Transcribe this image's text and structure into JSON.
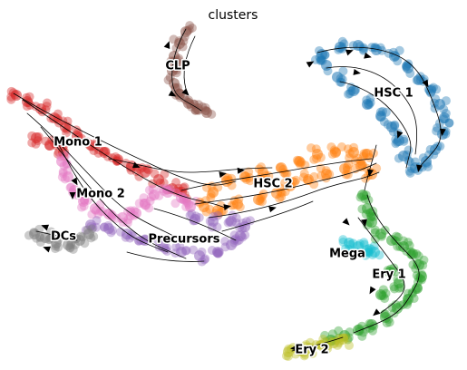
{
  "chart_data": {
    "type": "scatter",
    "title": "clusters",
    "xlabel": "",
    "ylabel": "",
    "grid": false,
    "axes_visible": false,
    "legend": "on data",
    "overlay": "velocity streamlines",
    "series": [
      {
        "name": "HSC 1",
        "color": "#1f77b4",
        "points": [
          [
            355,
            60
          ],
          [
            375,
            52
          ],
          [
            395,
            50
          ],
          [
            415,
            55
          ],
          [
            435,
            62
          ],
          [
            450,
            75
          ],
          [
            462,
            88
          ],
          [
            475,
            100
          ],
          [
            485,
            115
          ],
          [
            490,
            130
          ],
          [
            488,
            148
          ],
          [
            480,
            165
          ],
          [
            470,
            178
          ],
          [
            458,
            185
          ],
          [
            445,
            172
          ],
          [
            440,
            155
          ],
          [
            432,
            140
          ],
          [
            420,
            128
          ],
          [
            405,
            115
          ],
          [
            390,
            100
          ],
          [
            372,
            85
          ],
          [
            360,
            72
          ]
        ]
      },
      {
        "name": "HSC 2",
        "color": "#ff7f0e",
        "points": [
          [
            405,
            170
          ],
          [
            390,
            168
          ],
          [
            370,
            168
          ],
          [
            350,
            170
          ],
          [
            330,
            178
          ],
          [
            310,
            185
          ],
          [
            290,
            190
          ],
          [
            270,
            195
          ],
          [
            250,
            200
          ],
          [
            235,
            212
          ],
          [
            225,
            228
          ],
          [
            240,
            232
          ],
          [
            262,
            225
          ],
          [
            285,
            220
          ],
          [
            305,
            213
          ],
          [
            320,
            205
          ],
          [
            340,
            198
          ],
          [
            360,
            192
          ],
          [
            380,
            186
          ],
          [
            398,
            183
          ],
          [
            410,
            192
          ]
        ]
      },
      {
        "name": "CLP",
        "color": "#8c564b",
        "points": [
          [
            205,
            35
          ],
          [
            198,
            48
          ],
          [
            192,
            62
          ],
          [
            190,
            78
          ],
          [
            192,
            92
          ],
          [
            198,
            104
          ],
          [
            208,
            114
          ],
          [
            218,
            120
          ],
          [
            228,
            124
          ]
        ]
      },
      {
        "name": "Mono 1",
        "color": "#d62728",
        "points": [
          [
            18,
            105
          ],
          [
            30,
            112
          ],
          [
            45,
            120
          ],
          [
            60,
            130
          ],
          [
            72,
            140
          ],
          [
            85,
            150
          ],
          [
            100,
            160
          ],
          [
            115,
            168
          ],
          [
            130,
            176
          ],
          [
            145,
            183
          ],
          [
            160,
            190
          ],
          [
            175,
            198
          ],
          [
            190,
            208
          ],
          [
            200,
            212
          ],
          [
            40,
            152
          ],
          [
            55,
            160
          ],
          [
            70,
            168
          ]
        ]
      },
      {
        "name": "Mono 2",
        "color": "#e377c2",
        "points": [
          [
            68,
            178
          ],
          [
            75,
            195
          ],
          [
            82,
            210
          ],
          [
            92,
            222
          ],
          [
            105,
            230
          ],
          [
            120,
            236
          ],
          [
            135,
            240
          ],
          [
            150,
            235
          ],
          [
            160,
            225
          ],
          [
            170,
            215
          ],
          [
            185,
            212
          ],
          [
            200,
            218
          ],
          [
            210,
            228
          ]
        ]
      },
      {
        "name": "Precursors",
        "color": "#9467bd",
        "points": [
          [
            100,
            248
          ],
          [
            120,
            252
          ],
          [
            140,
            258
          ],
          [
            160,
            265
          ],
          [
            180,
            272
          ],
          [
            200,
            278
          ],
          [
            220,
            282
          ],
          [
            240,
            278
          ],
          [
            255,
            270
          ],
          [
            265,
            260
          ],
          [
            270,
            250
          ],
          [
            255,
            244
          ],
          [
            235,
            244
          ],
          [
            215,
            242
          ]
        ]
      },
      {
        "name": "DCs",
        "color": "#7f7f7f",
        "points": [
          [
            38,
            258
          ],
          [
            50,
            262
          ],
          [
            62,
            268
          ],
          [
            75,
            270
          ],
          [
            88,
            265
          ],
          [
            98,
            258
          ]
        ]
      },
      {
        "name": "Mega",
        "color": "#17becf",
        "points": [
          [
            385,
            268
          ],
          [
            395,
            272
          ],
          [
            405,
            276
          ],
          [
            413,
            278
          ]
        ]
      },
      {
        "name": "Ery 1",
        "color": "#2ca02c",
        "points": [
          [
            400,
            215
          ],
          [
            405,
            230
          ],
          [
            410,
            245
          ],
          [
            420,
            258
          ],
          [
            432,
            265
          ],
          [
            445,
            272
          ],
          [
            455,
            280
          ],
          [
            462,
            292
          ],
          [
            465,
            305
          ],
          [
            460,
            318
          ],
          [
            450,
            330
          ],
          [
            438,
            340
          ],
          [
            425,
            350
          ],
          [
            410,
            358
          ],
          [
            395,
            364
          ],
          [
            380,
            370
          ],
          [
            365,
            375
          ],
          [
            430,
            300
          ],
          [
            440,
            312
          ],
          [
            420,
            325
          ]
        ]
      },
      {
        "name": "Ery 2",
        "color": "#bcbd22",
        "points": [
          [
            318,
            388
          ],
          [
            330,
            386
          ],
          [
            342,
            384
          ],
          [
            355,
            381
          ],
          [
            368,
            378
          ],
          [
            378,
            374
          ]
        ]
      }
    ],
    "labels": [
      {
        "text": "CLP",
        "x": 196,
        "y": 73
      },
      {
        "text": "HSC 1",
        "x": 434,
        "y": 103
      },
      {
        "text": "Mono 1",
        "x": 86,
        "y": 157
      },
      {
        "text": "Mono 2",
        "x": 111,
        "y": 214
      },
      {
        "text": "HSC 2",
        "x": 301,
        "y": 203
      },
      {
        "text": "DCs",
        "x": 70,
        "y": 261
      },
      {
        "text": "Precursors",
        "x": 203,
        "y": 264
      },
      {
        "text": "Mega",
        "x": 383,
        "y": 280
      },
      {
        "text": "Ery 1",
        "x": 429,
        "y": 303
      },
      {
        "text": "Ery 2",
        "x": 344,
        "y": 386
      }
    ]
  }
}
